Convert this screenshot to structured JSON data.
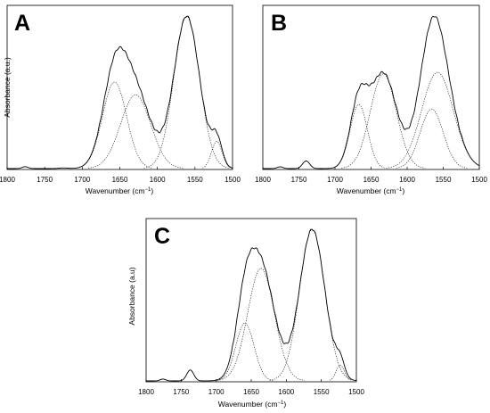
{
  "chart_data": [
    {
      "type": "line",
      "panel_label": "A",
      "xlabel_prefix": "Wavenumber (cm",
      "xlabel_sup": "−1",
      "xlabel_suffix": ")",
      "ylabel": "Absorbance (a.u.)",
      "xlim": [
        1800,
        1500
      ],
      "x_ticks": [
        "1800",
        "1750",
        "1700",
        "1650",
        "1600",
        "1550",
        "1500"
      ],
      "grid": false,
      "bumps": [
        {
          "x0": 1776,
          "w": 4,
          "a": 0.012
        },
        {
          "x0": 1725,
          "w": 6,
          "a": 0.004
        }
      ],
      "components": [
        {
          "center": 1657,
          "width": 16,
          "amplitude": 0.54
        },
        {
          "center": 1629,
          "width": 20,
          "amplitude": 0.46
        },
        {
          "center": 1561,
          "width": 17,
          "amplitude": 0.95
        },
        {
          "center": 1521,
          "width": 7,
          "amplitude": 0.17
        }
      ]
    },
    {
      "type": "line",
      "panel_label": "B",
      "xlabel_prefix": "Wavenumber (cm",
      "xlabel_sup": "−1",
      "xlabel_suffix": ")",
      "ylabel": "Absorbance (a.u.)",
      "xlim": [
        1800,
        1500
      ],
      "x_ticks": [
        "1800",
        "1750",
        "1700",
        "1650",
        "1600",
        "1550",
        "1500"
      ],
      "grid": false,
      "bumps": [
        {
          "x0": 1776,
          "w": 4,
          "a": 0.012
        },
        {
          "x0": 1740,
          "w": 5,
          "a": 0.05
        }
      ],
      "components": [
        {
          "center": 1667,
          "width": 12,
          "amplitude": 0.42
        },
        {
          "center": 1633,
          "width": 18,
          "amplitude": 0.62
        },
        {
          "center": 1558,
          "width": 22,
          "amplitude": 0.63
        },
        {
          "center": 1566,
          "width": 16,
          "amplitude": 0.39
        }
      ]
    },
    {
      "type": "line",
      "panel_label": "C",
      "xlabel_prefix": "Wavenumber (cm",
      "xlabel_sup": "−1",
      "xlabel_suffix": ")",
      "ylabel": "Absorbance (a.u)",
      "xlim": [
        1800,
        1500
      ],
      "x_ticks": [
        "1800",
        "1750",
        "1700",
        "1650",
        "1600",
        "1550",
        "1500"
      ],
      "grid": false,
      "bumps": [
        {
          "x0": 1776,
          "w": 4,
          "a": 0.012
        },
        {
          "x0": 1737,
          "w": 5,
          "a": 0.07
        }
      ],
      "components": [
        {
          "center": 1659,
          "width": 13,
          "amplitude": 0.37
        },
        {
          "center": 1636,
          "width": 19,
          "amplitude": 0.72
        },
        {
          "center": 1563,
          "width": 18,
          "amplitude": 0.97
        },
        {
          "center": 1523,
          "width": 6,
          "amplitude": 0.1
        }
      ]
    }
  ]
}
